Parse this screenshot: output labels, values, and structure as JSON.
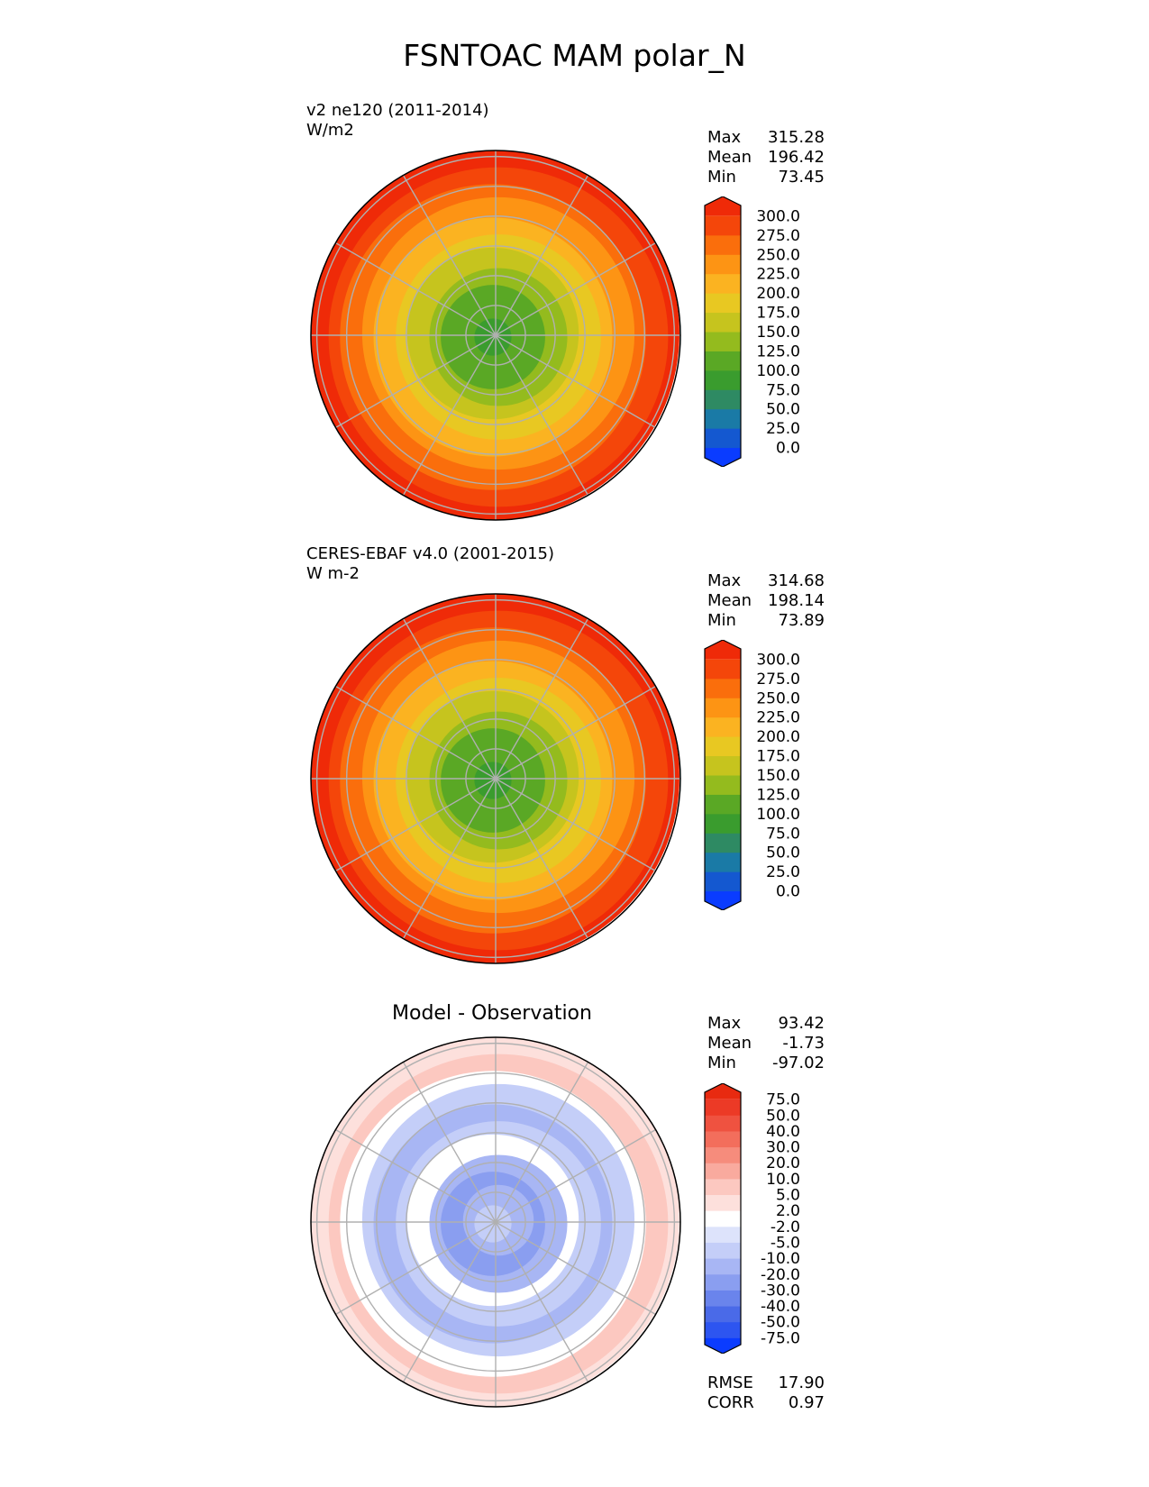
{
  "figure": {
    "title": "FSNTOAC MAM polar_N"
  },
  "chart_data": [
    {
      "type": "heatmap",
      "projection": "north-polar-stereographic",
      "title": "v2 ne120 (2011-2014)",
      "units": "W/m2",
      "stats": {
        "Max": "315.28",
        "Mean": "196.42",
        "Min": "73.45"
      },
      "levels": [
        "0.0",
        "25.0",
        "50.0",
        "75.0",
        "100.0",
        "125.0",
        "150.0",
        "175.0",
        "200.0",
        "225.0",
        "250.0",
        "275.0",
        "300.0"
      ],
      "colors": [
        "#0a3cff",
        "#1458d0",
        "#1a7aa6",
        "#2e8a63",
        "#3a9c2e",
        "#5aa825",
        "#94bb1e",
        "#c6c41e",
        "#e8c822",
        "#fbb321",
        "#fd9414",
        "#fa6e0c",
        "#f4460a",
        "#ef2a08"
      ]
    },
    {
      "type": "heatmap",
      "projection": "north-polar-stereographic",
      "title": "CERES-EBAF v4.0 (2001-2015)",
      "units": "W m-2",
      "stats": {
        "Max": "314.68",
        "Mean": "198.14",
        "Min": "73.89"
      },
      "levels": [
        "0.0",
        "25.0",
        "50.0",
        "75.0",
        "100.0",
        "125.0",
        "150.0",
        "175.0",
        "200.0",
        "225.0",
        "250.0",
        "275.0",
        "300.0"
      ],
      "colors": [
        "#0a3cff",
        "#1458d0",
        "#1a7aa6",
        "#2e8a63",
        "#3a9c2e",
        "#5aa825",
        "#94bb1e",
        "#c6c41e",
        "#e8c822",
        "#fbb321",
        "#fd9414",
        "#fa6e0c",
        "#f4460a",
        "#ef2a08"
      ]
    },
    {
      "type": "heatmap",
      "projection": "north-polar-stereographic",
      "title": "Model - Observation",
      "stats": {
        "Max": "93.42",
        "Mean": "-1.73",
        "Min": "-97.02"
      },
      "metrics": {
        "RMSE": "17.90",
        "CORR": "0.97"
      },
      "levels": [
        "-75.0",
        "-50.0",
        "-40.0",
        "-30.0",
        "-20.0",
        "-10.0",
        "-5.0",
        "-2.0",
        "2.0",
        "5.0",
        "10.0",
        "20.0",
        "30.0",
        "40.0",
        "50.0",
        "75.0"
      ],
      "colors": [
        "#0b3cff",
        "#2d55f0",
        "#4a6ae8",
        "#6a84ec",
        "#8a9ef0",
        "#a8b6f4",
        "#c4cef8",
        "#dde3fb",
        "#ffffff",
        "#fde0dc",
        "#fcc8c0",
        "#f9aa9e",
        "#f68c7c",
        "#f36e5c",
        "#ef5240",
        "#ec3a26",
        "#e82a10"
      ]
    }
  ]
}
